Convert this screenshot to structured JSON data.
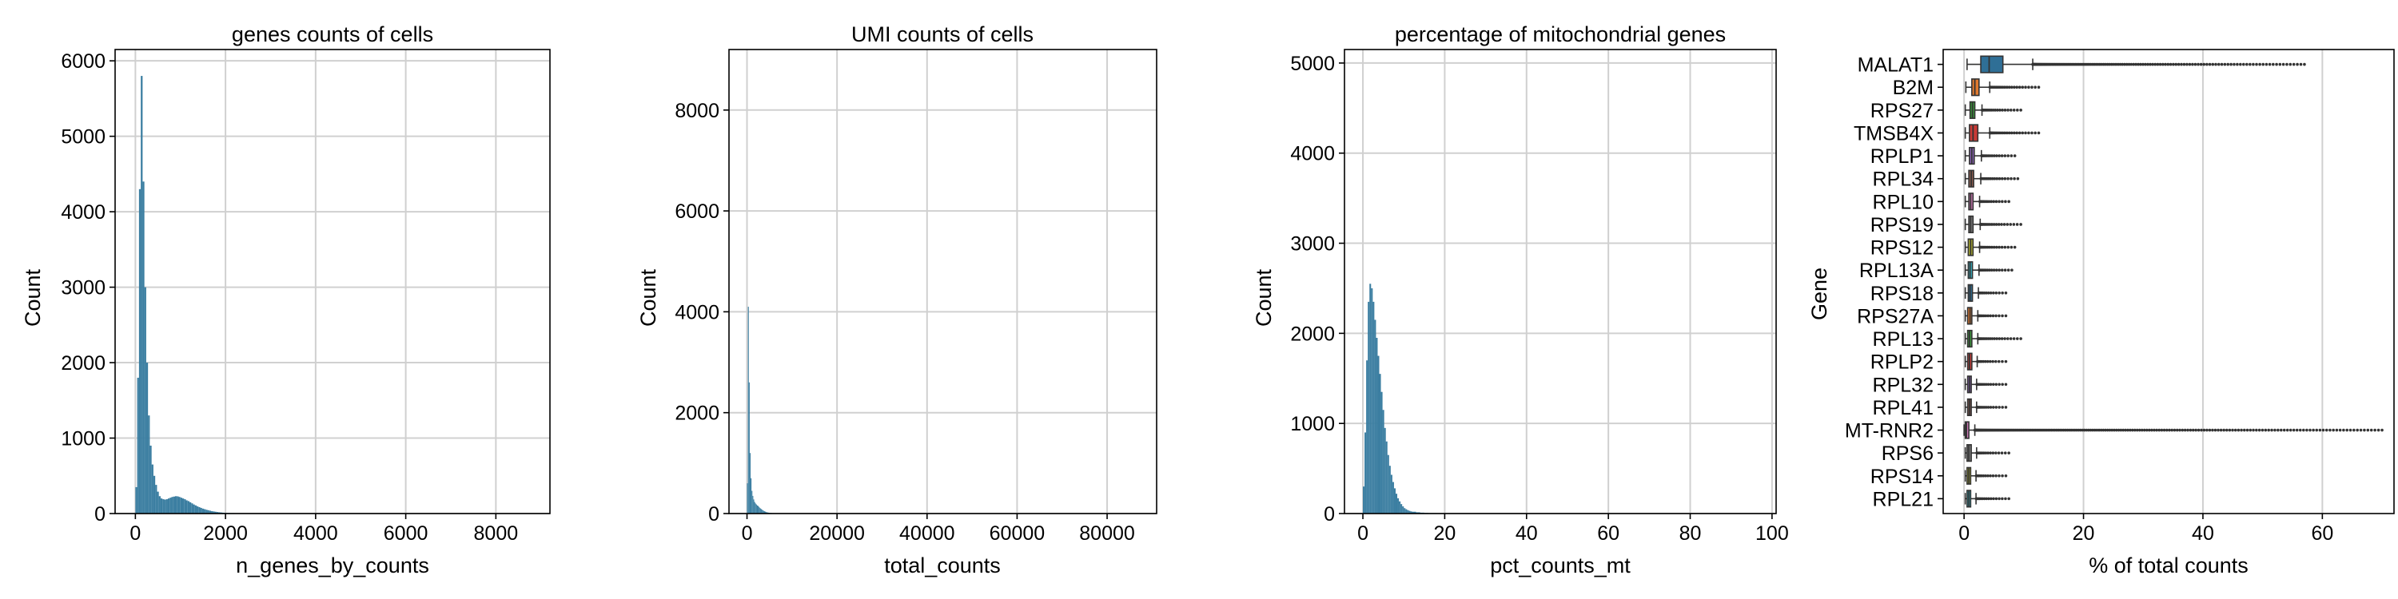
{
  "colors": {
    "hist": "#3b7ea1",
    "grid": "#d0d0d0"
  },
  "chart_data": [
    {
      "type": "histogram",
      "title": "genes counts of cells",
      "xlabel": "n_genes_by_counts",
      "ylabel": "Count",
      "xlim": [
        -450,
        9200
      ],
      "ylim": [
        0,
        6150
      ],
      "xticks": [
        0,
        2000,
        4000,
        6000,
        8000
      ],
      "yticks": [
        0,
        1000,
        2000,
        3000,
        4000,
        5000,
        6000
      ],
      "bin_width": 40,
      "bins_x": [
        0,
        40,
        80,
        120,
        160,
        200,
        240,
        280,
        320,
        360,
        400,
        440,
        480,
        520,
        560,
        600,
        640,
        680,
        720,
        760,
        800,
        840,
        880,
        920,
        960,
        1000,
        1040,
        1080,
        1120,
        1160,
        1200,
        1240,
        1280,
        1320,
        1360,
        1400,
        1440,
        1480,
        1520,
        1560,
        1600,
        1640,
        1680,
        1720,
        1760,
        1800,
        1840,
        1880,
        1920,
        1960,
        2000,
        2100,
        2200,
        2300,
        2400
      ],
      "counts": [
        350,
        1800,
        4300,
        5800,
        4400,
        3000,
        2000,
        1300,
        900,
        650,
        500,
        380,
        290,
        230,
        200,
        190,
        185,
        190,
        200,
        210,
        220,
        225,
        230,
        228,
        220,
        210,
        200,
        190,
        175,
        165,
        150,
        135,
        120,
        108,
        95,
        85,
        75,
        65,
        58,
        50,
        44,
        38,
        32,
        28,
        24,
        20,
        17,
        15,
        12,
        10,
        8,
        6,
        4,
        3,
        2
      ]
    },
    {
      "type": "histogram",
      "title": "UMI counts of cells",
      "xlabel": "total_counts",
      "ylabel": "Count",
      "xlim": [
        -4000,
        91000
      ],
      "ylim": [
        0,
        9200
      ],
      "xticks": [
        0,
        20000,
        40000,
        60000,
        80000
      ],
      "yticks": [
        0,
        2000,
        4000,
        6000,
        8000
      ],
      "bin_width": 200,
      "bins_x": [
        0,
        200,
        400,
        600,
        800,
        1000,
        1200,
        1400,
        1600,
        1800,
        2000,
        2200,
        2400,
        2600,
        2800,
        3000,
        3200,
        3400,
        3600,
        3800,
        4000,
        4200,
        4400,
        4600,
        4800,
        5000,
        5500,
        6000,
        7000
      ],
      "counts": [
        600,
        4100,
        2600,
        1200,
        700,
        450,
        350,
        280,
        230,
        200,
        180,
        160,
        150,
        130,
        110,
        95,
        80,
        65,
        55,
        45,
        38,
        30,
        24,
        20,
        16,
        12,
        8,
        5,
        3
      ]
    },
    {
      "type": "histogram",
      "title": "percentage of mitochondrial genes",
      "xlabel": "pct_counts_mt",
      "ylabel": "Count",
      "xlim": [
        -4.5,
        101
      ],
      "ylim": [
        0,
        5150
      ],
      "xticks": [
        0,
        20,
        40,
        60,
        80,
        100
      ],
      "yticks": [
        0,
        1000,
        2000,
        3000,
        4000,
        5000
      ],
      "bin_width": 0.4,
      "bins_x": [
        0,
        0.4,
        0.8,
        1.2,
        1.6,
        2.0,
        2.4,
        2.8,
        3.2,
        3.6,
        4.0,
        4.4,
        4.8,
        5.2,
        5.6,
        6.0,
        6.4,
        6.8,
        7.2,
        7.6,
        8.0,
        8.4,
        8.8,
        9.2,
        9.6,
        10.0,
        10.4,
        10.8,
        11.2,
        11.6,
        12.0,
        13.0,
        14.0,
        15.0,
        16.0,
        18.0,
        20.0
      ],
      "counts": [
        300,
        900,
        1700,
        2350,
        2550,
        2500,
        2350,
        2150,
        1950,
        1750,
        1550,
        1350,
        1150,
        950,
        800,
        650,
        530,
        430,
        350,
        280,
        220,
        170,
        135,
        105,
        80,
        60,
        48,
        38,
        30,
        24,
        20,
        14,
        10,
        7,
        5,
        3,
        2
      ]
    },
    {
      "type": "box",
      "xlabel": "% of total counts",
      "ylabel": "Gene",
      "xlim": [
        -3.5,
        72
      ],
      "xticks": [
        0,
        20,
        40,
        60
      ],
      "categories": [
        "MALAT1",
        "B2M",
        "RPS27",
        "TMSB4X",
        "RPLP1",
        "RPL34",
        "RPL10",
        "RPS19",
        "RPS12",
        "RPL13A",
        "RPS18",
        "RPS27A",
        "RPL13",
        "RPLP2",
        "RPL32",
        "RPL41",
        "MT-RNR2",
        "RPS6",
        "RPS14",
        "RPL21"
      ],
      "box_colors": [
        "#2f6f96",
        "#e07a2f",
        "#3a9a3a",
        "#c83a36",
        "#8a63b6",
        "#8a5a4e",
        "#d57dbd",
        "#7f7f7f",
        "#b5b52e",
        "#35b3c4",
        "#2f6f96",
        "#e07a2f",
        "#3a9a3a",
        "#c83a36",
        "#8a63b6",
        "#8a5a4e",
        "#d57dbd",
        "#7f7f7f",
        "#b5b52e",
        "#35b3c4"
      ],
      "stats": [
        {
          "whislo": 0.5,
          "q1": 2.8,
          "med": 4.2,
          "q3": 6.5,
          "whishi": 11.5,
          "fliers_max": 57
        },
        {
          "whislo": 0.3,
          "q1": 1.3,
          "med": 1.8,
          "q3": 2.5,
          "whishi": 4.3,
          "fliers_max": 12.5
        },
        {
          "whislo": 0.2,
          "q1": 1.0,
          "med": 1.4,
          "q3": 1.8,
          "whishi": 3.0,
          "fliers_max": 9.5
        },
        {
          "whislo": 0.2,
          "q1": 0.9,
          "med": 1.5,
          "q3": 2.3,
          "whishi": 4.3,
          "fliers_max": 12.5
        },
        {
          "whislo": 0.2,
          "q1": 0.9,
          "med": 1.3,
          "q3": 1.7,
          "whishi": 2.9,
          "fliers_max": 8.5
        },
        {
          "whislo": 0.2,
          "q1": 0.8,
          "med": 1.2,
          "q3": 1.6,
          "whishi": 2.8,
          "fliers_max": 9.0
        },
        {
          "whislo": 0.2,
          "q1": 0.8,
          "med": 1.1,
          "q3": 1.5,
          "whishi": 2.6,
          "fliers_max": 7.5
        },
        {
          "whislo": 0.2,
          "q1": 0.8,
          "med": 1.1,
          "q3": 1.5,
          "whishi": 2.7,
          "fliers_max": 9.5
        },
        {
          "whislo": 0.2,
          "q1": 0.7,
          "med": 1.1,
          "q3": 1.5,
          "whishi": 2.6,
          "fliers_max": 8.5
        },
        {
          "whislo": 0.2,
          "q1": 0.7,
          "med": 1.0,
          "q3": 1.4,
          "whishi": 2.5,
          "fliers_max": 8.0
        },
        {
          "whislo": 0.2,
          "q1": 0.7,
          "med": 1.0,
          "q3": 1.4,
          "whishi": 2.4,
          "fliers_max": 7.0
        },
        {
          "whislo": 0.2,
          "q1": 0.6,
          "med": 1.0,
          "q3": 1.3,
          "whishi": 2.3,
          "fliers_max": 7.0
        },
        {
          "whislo": 0.2,
          "q1": 0.6,
          "med": 0.9,
          "q3": 1.3,
          "whishi": 2.3,
          "fliers_max": 9.5
        },
        {
          "whislo": 0.2,
          "q1": 0.6,
          "med": 0.9,
          "q3": 1.3,
          "whishi": 2.2,
          "fliers_max": 7.0
        },
        {
          "whislo": 0.2,
          "q1": 0.6,
          "med": 0.9,
          "q3": 1.2,
          "whishi": 2.1,
          "fliers_max": 7.0
        },
        {
          "whislo": 0.2,
          "q1": 0.6,
          "med": 0.9,
          "q3": 1.2,
          "whishi": 2.1,
          "fliers_max": 7.0
        },
        {
          "whislo": 0.0,
          "q1": 0.2,
          "med": 0.4,
          "q3": 0.8,
          "whishi": 1.8,
          "fliers_max": 70
        },
        {
          "whislo": 0.2,
          "q1": 0.5,
          "med": 0.8,
          "q3": 1.2,
          "whishi": 2.1,
          "fliers_max": 7.5
        },
        {
          "whislo": 0.2,
          "q1": 0.5,
          "med": 0.8,
          "q3": 1.1,
          "whishi": 2.0,
          "fliers_max": 7.0
        },
        {
          "whislo": 0.2,
          "q1": 0.5,
          "med": 0.8,
          "q3": 1.1,
          "whishi": 2.0,
          "fliers_max": 7.5
        }
      ]
    }
  ]
}
